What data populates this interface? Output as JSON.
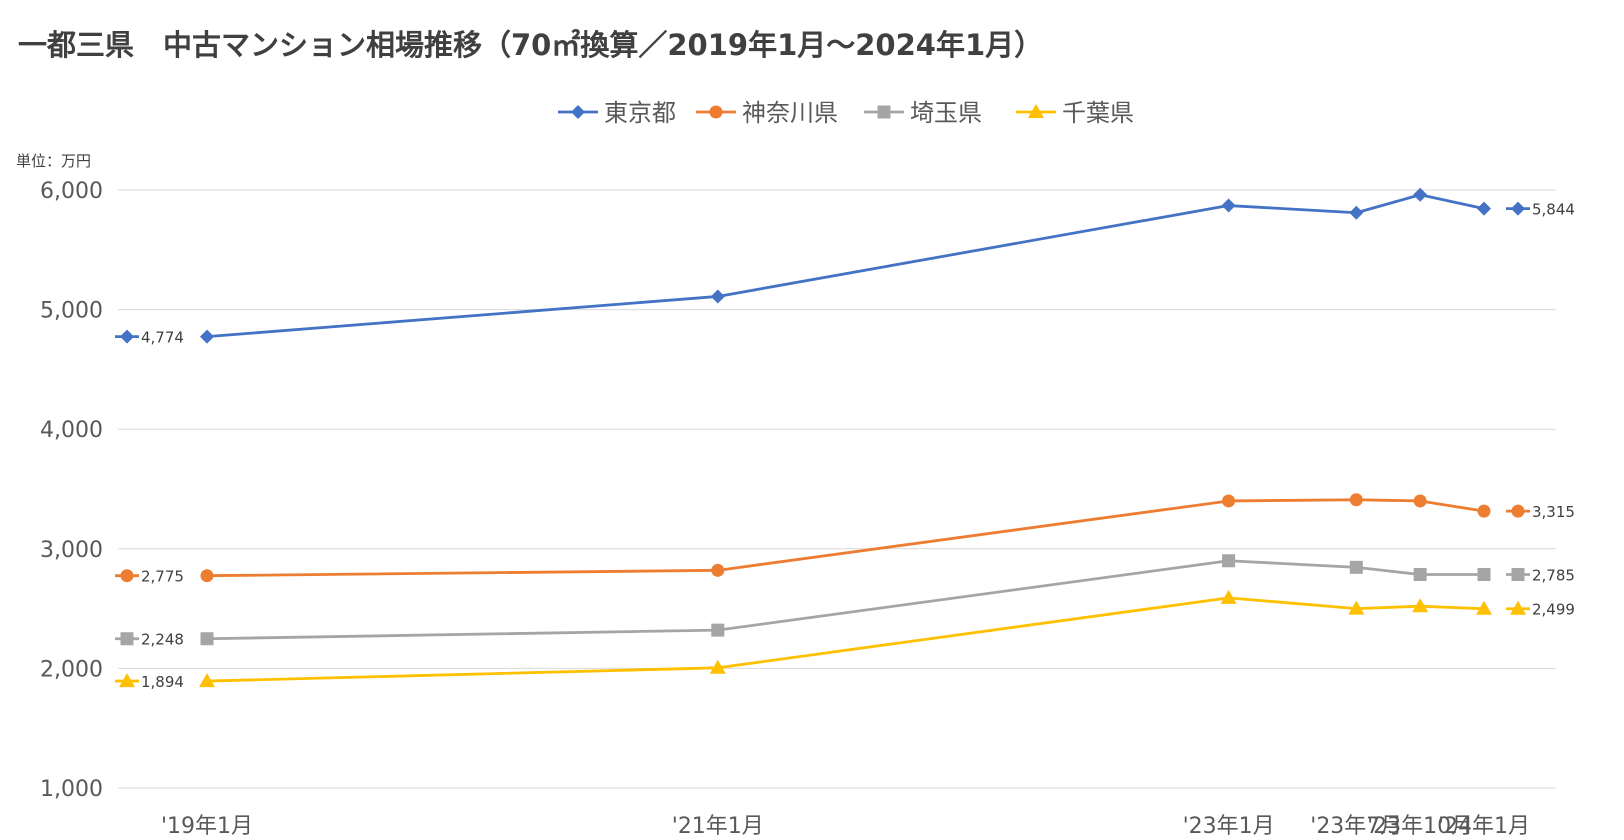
{
  "chart_data": {
    "type": "line",
    "title": "一都三県　中古マンション相場推移（70㎡換算／2019年1月～2024年1月）",
    "unit_label": "単位：万円",
    "categories": [
      "'19年1月",
      "'21年1月",
      "'23年1月",
      "'23年7月",
      "'23年10月",
      "'24年1月"
    ],
    "x": [
      "2019-01",
      "2021-01",
      "2023-01",
      "2023-07",
      "2023-10",
      "2024-01"
    ],
    "ylim": [
      1000,
      6000
    ],
    "yticks": [
      1000,
      2000,
      3000,
      4000,
      5000,
      6000
    ],
    "ytick_labels": [
      "1,000",
      "2,000",
      "3,000",
      "4,000",
      "5,000",
      "6,000"
    ],
    "grid": true,
    "legend_position": "top-center",
    "series": [
      {
        "name": "東京都",
        "color": "#4472C4",
        "marker": "diamond",
        "values": [
          4774,
          5110,
          5870,
          5810,
          5960,
          5844
        ],
        "start_label": "4,774",
        "end_label": "5,844"
      },
      {
        "name": "神奈川県",
        "color": "#ED7D31",
        "marker": "circle",
        "values": [
          2775,
          2820,
          3400,
          3410,
          3400,
          3315
        ],
        "start_label": "2,775",
        "end_label": "3,315"
      },
      {
        "name": "埼玉県",
        "color": "#A5A5A5",
        "marker": "square",
        "values": [
          2248,
          2320,
          2900,
          2845,
          2785,
          2785
        ],
        "start_label": "2,248",
        "end_label": "2,785"
      },
      {
        "name": "千葉県",
        "color": "#FFC000",
        "marker": "triangle",
        "values": [
          1894,
          2005,
          2590,
          2500,
          2520,
          2499
        ],
        "start_label": "1,894",
        "end_label": "2,499"
      }
    ]
  }
}
